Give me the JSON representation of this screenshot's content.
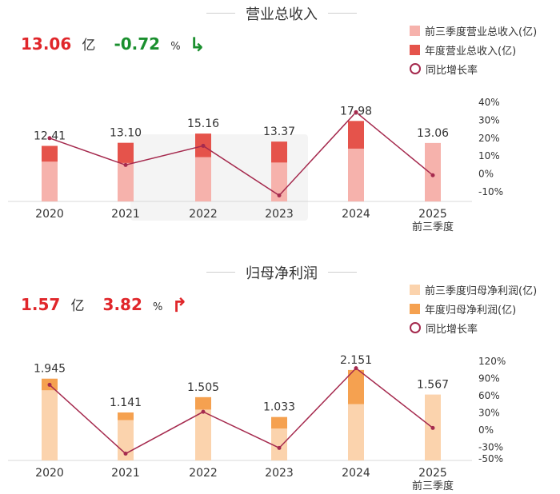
{
  "colors": {
    "revenue_q3": "#f6b2ac",
    "revenue_year": "#e5534b",
    "profit_q3": "#fbd3ad",
    "profit_year": "#f5a150",
    "growth_line": "#a52a4e",
    "up_red": "#e0262a",
    "down_green": "#1a8f2e"
  },
  "panel1": {
    "title": "营业总收入",
    "headline_value": "13.06",
    "headline_unit": "亿",
    "headline_change": "-0.72",
    "headline_change_unit": "%",
    "headline_direction_icon": "arrow-down-icon",
    "legend": [
      "前三季度营业总收入(亿)",
      "年度营业总收入(亿)",
      "同比增长率"
    ]
  },
  "panel2": {
    "title": "归母净利润",
    "headline_value": "1.57",
    "headline_unit": "亿",
    "headline_change": "3.82",
    "headline_change_unit": "%",
    "headline_direction_icon": "arrow-up-icon",
    "legend": [
      "前三季度归母净利润(亿)",
      "年度归母净利润(亿)",
      "同比增长率"
    ]
  },
  "chart_data": [
    {
      "type": "bar",
      "title": "营业总收入",
      "categories": [
        "2020",
        "2021",
        "2022",
        "2023",
        "2024",
        "2025"
      ],
      "category_sublabels": [
        "",
        "",
        "",
        "",
        "",
        "前三季度"
      ],
      "series": [
        {
          "name": "前三季度营业总收入(亿)",
          "values": [
            8.9,
            8.6,
            9.9,
            8.7,
            11.8,
            13.06
          ]
        },
        {
          "name": "年度营业总收入(亿)",
          "values": [
            12.41,
            13.1,
            15.16,
            13.37,
            17.98,
            null
          ]
        },
        {
          "name": "同比增长率",
          "type": "line",
          "axis": "right",
          "values": [
            20,
            5,
            15.7,
            -12,
            34.5,
            -0.72
          ]
        }
      ],
      "bar_labels": [
        "12.41",
        "13.10",
        "15.16",
        "13.37",
        "17.98",
        "13.06"
      ],
      "bar_ylim": [
        0,
        25
      ],
      "right_axis": {
        "ticks": [
          "40%",
          "30%",
          "20%",
          "10%",
          "0%",
          "-10%"
        ],
        "tick_values": [
          40,
          30,
          20,
          10,
          0,
          -10
        ],
        "ylim": [
          -10,
          40
        ]
      }
    },
    {
      "type": "bar",
      "title": "归母净利润",
      "categories": [
        "2020",
        "2021",
        "2022",
        "2023",
        "2024",
        "2025"
      ],
      "category_sublabels": [
        "",
        "",
        "",
        "",
        "",
        "前三季度"
      ],
      "series": [
        {
          "name": "前三季度归母净利润(亿)",
          "values": [
            1.67,
            0.96,
            1.21,
            0.76,
            1.34,
            1.567
          ]
        },
        {
          "name": "年度归母净利润(亿)",
          "values": [
            1.945,
            1.141,
            1.505,
            1.033,
            2.151,
            null
          ]
        },
        {
          "name": "同比增长率",
          "type": "line",
          "axis": "right",
          "values": [
            79,
            -41,
            32,
            -31,
            108,
            3.82
          ]
        }
      ],
      "bar_labels": [
        "1.945",
        "1.141",
        "1.505",
        "1.033",
        "2.151",
        "1.567"
      ],
      "bar_ylim": [
        0,
        2.7
      ],
      "right_axis": {
        "ticks": [
          "120%",
          "90%",
          "60%",
          "30%",
          "0%",
          "-30%",
          "-50%"
        ],
        "tick_values": [
          120,
          90,
          60,
          30,
          0,
          -30,
          -50
        ],
        "ylim": [
          -50,
          120
        ]
      }
    }
  ]
}
